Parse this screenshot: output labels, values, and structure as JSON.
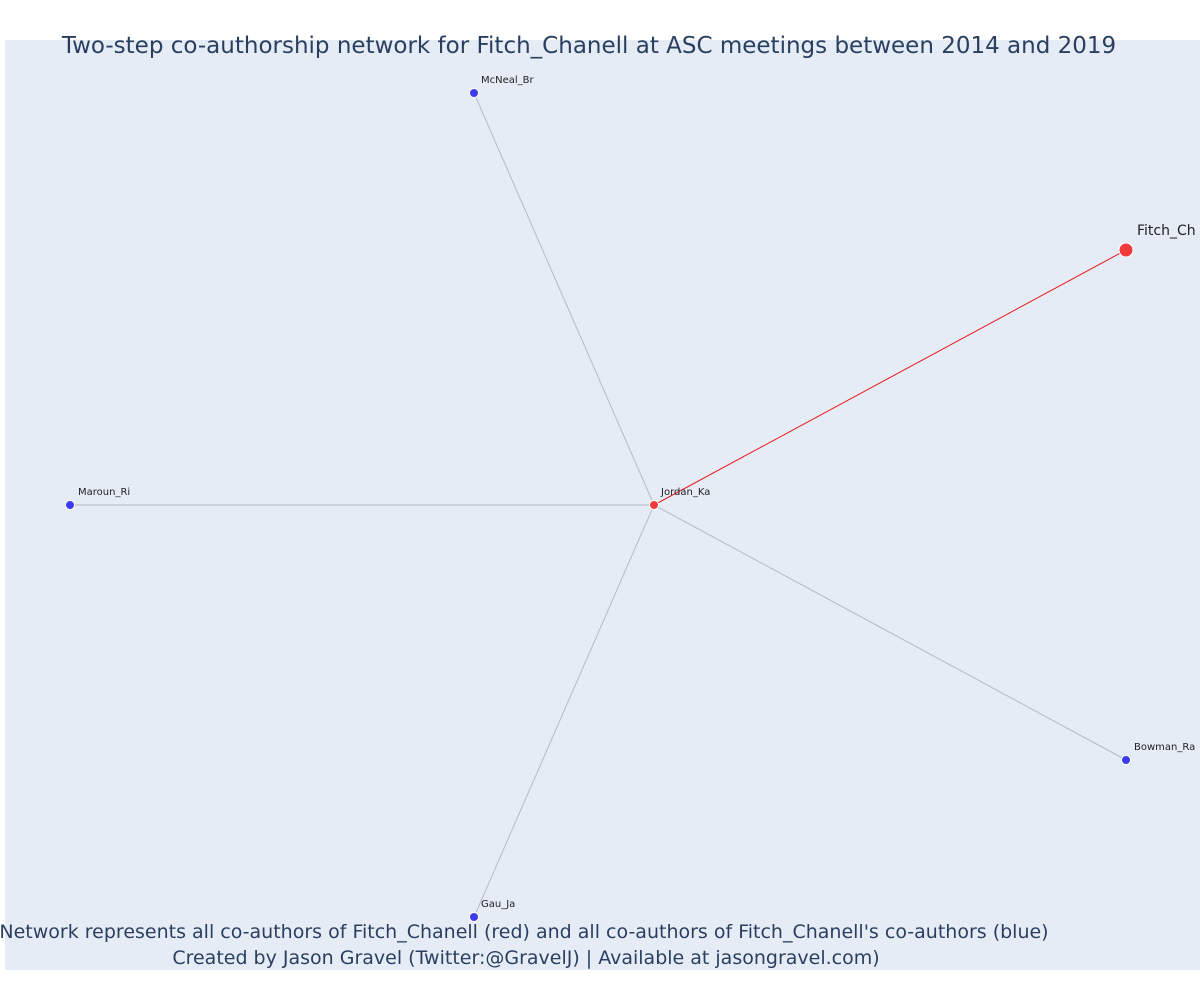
{
  "title": "Two-step co-authorship network for Fitch_Chanell at ASC meetings between 2014 and 2019",
  "caption": {
    "line1": "Network represents all co-authors of Fitch_Chanell (red) and all co-authors of Fitch_Chanell's co-authors (blue)",
    "line2": "Created by Jason Gravel (Twitter:@GravelJ) | Available at jasongravel.com)"
  },
  "colors": {
    "focal": "#ef3b3b",
    "coauthor": "#ef3b3b",
    "second_step": "#3b3bef",
    "focal_edge": "#e8191a",
    "other_edge": "#b7b9c9",
    "background": "#e5ecf6",
    "text": "#2a3f5f"
  },
  "chart_data": {
    "type": "network",
    "nodes": [
      {
        "id": "Fitch_Ch",
        "label": "Fitch_Ch",
        "group": "focal"
      },
      {
        "id": "Jordan_Ka",
        "label": "Jordan_Ka",
        "group": "coauthor"
      },
      {
        "id": "McNeal_Br",
        "label": "McNeal_Br",
        "group": "second_step"
      },
      {
        "id": "Maroun_Ri",
        "label": "Maroun_Ri",
        "group": "second_step"
      },
      {
        "id": "Gau_Ja",
        "label": "Gau_Ja",
        "group": "second_step"
      },
      {
        "id": "Bowman_Ra",
        "label": "Bowman_Ra",
        "group": "second_step"
      }
    ],
    "edges": [
      {
        "source": "Fitch_Ch",
        "target": "Jordan_Ka",
        "type": "focal"
      },
      {
        "source": "Jordan_Ka",
        "target": "McNeal_Br",
        "type": "other"
      },
      {
        "source": "Jordan_Ka",
        "target": "Maroun_Ri",
        "type": "other"
      },
      {
        "source": "Jordan_Ka",
        "target": "Gau_Ja",
        "type": "other"
      },
      {
        "source": "Jordan_Ka",
        "target": "Bowman_Ra",
        "type": "other"
      }
    ]
  }
}
